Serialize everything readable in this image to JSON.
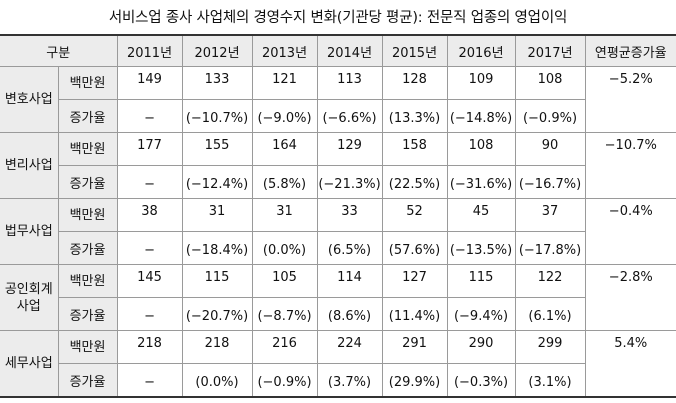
{
  "title": "서비스업 종사 사업체의 경영수지 변화(기관당 평균): 전문직 업종의 영업이익",
  "header": {
    "category": "구분",
    "years": [
      "2011년",
      "2012년",
      "2013년",
      "2014년",
      "2015년",
      "2016년",
      "2017년"
    ],
    "cagr": "연평균증가율"
  },
  "rows": [
    {
      "category": "변호사업",
      "unit_label": "백만원",
      "rate_label": "증가율",
      "values": [
        "149",
        "133",
        "121",
        "113",
        "128",
        "109",
        "108"
      ],
      "rates": [
        "−",
        "(−10.7%)",
        "(−9.0%)",
        "(−6.6%)",
        "(13.3%)",
        "(−14.8%)",
        "(−0.9%)"
      ],
      "cagr": "−5.2%"
    },
    {
      "category": "변리사업",
      "unit_label": "백만원",
      "rate_label": "증가율",
      "values": [
        "177",
        "155",
        "164",
        "129",
        "158",
        "108",
        "90"
      ],
      "rates": [
        "−",
        "(−12.4%)",
        "(5.8%)",
        "(−21.3%)",
        "(22.5%)",
        "(−31.6%)",
        "(−16.7%)"
      ],
      "cagr": "−10.7%"
    },
    {
      "category": "법무사업",
      "unit_label": "백만원",
      "rate_label": "증가율",
      "values": [
        "38",
        "31",
        "31",
        "33",
        "52",
        "45",
        "37"
      ],
      "rates": [
        "−",
        "(−18.4%)",
        "(0.0%)",
        "(6.5%)",
        "(57.6%)",
        "(−13.5%)",
        "(−17.8%)"
      ],
      "cagr": "−0.4%"
    },
    {
      "category": "공인회계\n사업",
      "unit_label": "백만원",
      "rate_label": "증가율",
      "values": [
        "145",
        "115",
        "105",
        "114",
        "127",
        "115",
        "122"
      ],
      "rates": [
        "−",
        "(−20.7%)",
        "(−8.7%)",
        "(8.6%)",
        "(11.4%)",
        "(−9.4%)",
        "(6.1%)"
      ],
      "cagr": "−2.8%"
    },
    {
      "category": "세무사업",
      "unit_label": "백만원",
      "rate_label": "증가율",
      "values": [
        "218",
        "218",
        "216",
        "224",
        "291",
        "290",
        "299"
      ],
      "rates": [
        "−",
        "(0.0%)",
        "(−0.9%)",
        "(3.7%)",
        "(29.9%)",
        "(−0.3%)",
        "(3.1%)"
      ],
      "cagr": "5.4%"
    }
  ]
}
